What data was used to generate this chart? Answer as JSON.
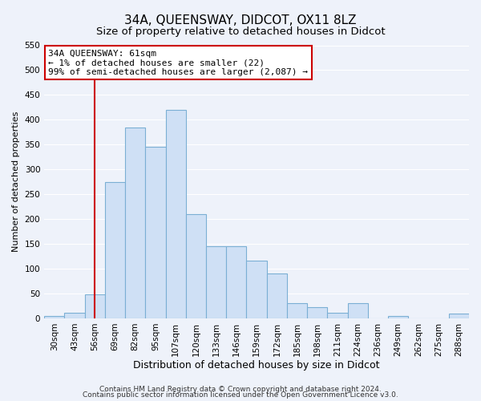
{
  "title": "34A, QUEENSWAY, DIDCOT, OX11 8LZ",
  "subtitle": "Size of property relative to detached houses in Didcot",
  "xlabel": "Distribution of detached houses by size in Didcot",
  "ylabel": "Number of detached properties",
  "bin_labels": [
    "30sqm",
    "43sqm",
    "56sqm",
    "69sqm",
    "82sqm",
    "95sqm",
    "107sqm",
    "120sqm",
    "133sqm",
    "146sqm",
    "159sqm",
    "172sqm",
    "185sqm",
    "198sqm",
    "211sqm",
    "224sqm",
    "236sqm",
    "249sqm",
    "262sqm",
    "275sqm",
    "288sqm"
  ],
  "bar_heights": [
    5,
    12,
    48,
    275,
    385,
    345,
    420,
    210,
    145,
    145,
    117,
    90,
    30,
    22,
    12,
    30,
    0,
    5,
    0,
    0,
    10
  ],
  "bar_color": "#cfe0f5",
  "bar_edge_color": "#7bafd4",
  "bar_edge_width": 0.8,
  "vline_x_index": 2,
  "vline_color": "#cc0000",
  "vline_linewidth": 1.5,
  "annotation_title": "34A QUEENSWAY: 61sqm",
  "annotation_line1": "← 1% of detached houses are smaller (22)",
  "annotation_line2": "99% of semi-detached houses are larger (2,087) →",
  "annotation_box_facecolor": "#ffffff",
  "annotation_box_edgecolor": "#cc0000",
  "ylim": [
    0,
    550
  ],
  "yticks": [
    0,
    50,
    100,
    150,
    200,
    250,
    300,
    350,
    400,
    450,
    500,
    550
  ],
  "footnote1": "Contains HM Land Registry data © Crown copyright and database right 2024.",
  "footnote2": "Contains public sector information licensed under the Open Government Licence v3.0.",
  "fig_bg_color": "#eef2fa",
  "plot_bg_color": "#eef2fa",
  "grid_color": "#ffffff",
  "title_fontsize": 11,
  "subtitle_fontsize": 9.5,
  "xlabel_fontsize": 9,
  "ylabel_fontsize": 8,
  "tick_fontsize": 7.5,
  "annotation_fontsize": 8,
  "footnote_fontsize": 6.5
}
